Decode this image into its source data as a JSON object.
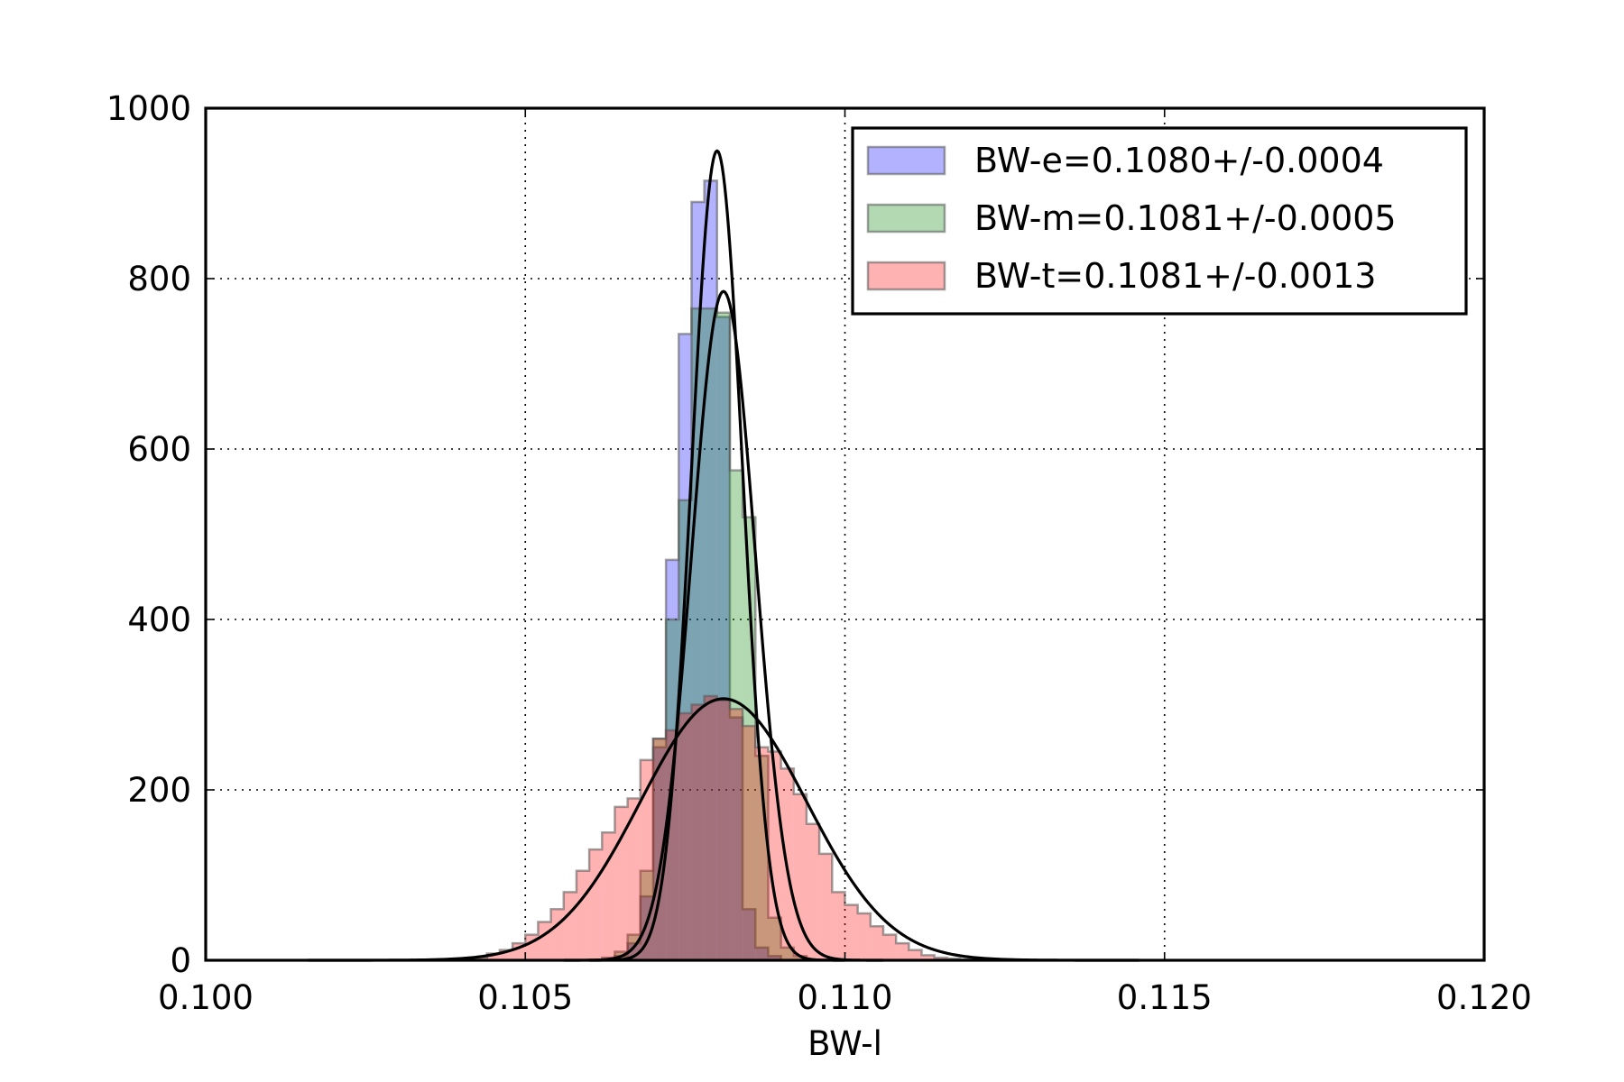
{
  "chart_data": {
    "type": "histogram",
    "xlabel": "BW-l",
    "ylabel": "",
    "title": "",
    "xlim": [
      0.1,
      0.12
    ],
    "ylim": [
      0,
      1000
    ],
    "xticks": [
      0.1,
      0.105,
      0.11,
      0.115,
      0.12
    ],
    "xtick_labels": [
      "0.100",
      "0.105",
      "0.110",
      "0.115",
      "0.120"
    ],
    "yticks": [
      0,
      200,
      400,
      600,
      800,
      1000
    ],
    "ytick_labels": [
      "0",
      "200",
      "400",
      "600",
      "800",
      "1000"
    ],
    "grid": true,
    "legend_position": "top-right",
    "series": [
      {
        "name": "BW-e=0.1080+/-0.0004",
        "color": "#0000ff",
        "alpha": 0.3,
        "edges": [
          0.1064,
          0.1066,
          0.1068,
          0.107,
          0.1072,
          0.1074,
          0.1076,
          0.1078,
          0.108,
          0.1082,
          0.1084,
          0.1086,
          0.1088,
          0.109,
          0.1092
        ],
        "counts": [
          5,
          20,
          75,
          250,
          470,
          735,
          890,
          915,
          755,
          285,
          60,
          15,
          5,
          0
        ],
        "fit": {
          "mean": 0.108,
          "sigma": 0.0004,
          "peak": 950
        }
      },
      {
        "name": "BW-m=0.1081+/-0.0005",
        "color": "#008000",
        "alpha": 0.3,
        "edges": [
          0.1062,
          0.1064,
          0.1066,
          0.1068,
          0.107,
          0.1072,
          0.1074,
          0.1076,
          0.1078,
          0.108,
          0.1082,
          0.1084,
          0.1086,
          0.1088,
          0.109,
          0.1092,
          0.1094
        ],
        "counts": [
          3,
          10,
          30,
          105,
          260,
          400,
          540,
          765,
          765,
          760,
          575,
          520,
          240,
          50,
          15,
          5
        ],
        "fit": {
          "mean": 0.1081,
          "sigma": 0.0005,
          "peak": 785
        }
      },
      {
        "name": "BW-t=0.1081+/-0.0013",
        "color": "#ff0000",
        "alpha": 0.3,
        "edges": [
          0.1042,
          0.1044,
          0.1046,
          0.1048,
          0.105,
          0.1052,
          0.1054,
          0.1056,
          0.1058,
          0.106,
          0.1062,
          0.1064,
          0.1066,
          0.1068,
          0.107,
          0.1072,
          0.1074,
          0.1076,
          0.1078,
          0.108,
          0.1082,
          0.1084,
          0.1086,
          0.1088,
          0.109,
          0.1092,
          0.1094,
          0.1096,
          0.1098,
          0.11,
          0.1102,
          0.1104,
          0.1106,
          0.1108,
          0.111,
          0.1112,
          0.1114,
          0.1116,
          0.1118,
          0.112
        ],
        "counts": [
          3,
          8,
          12,
          20,
          30,
          45,
          60,
          80,
          105,
          130,
          150,
          180,
          190,
          235,
          260,
          270,
          290,
          300,
          310,
          305,
          295,
          275,
          250,
          245,
          225,
          195,
          160,
          125,
          80,
          65,
          55,
          40,
          30,
          20,
          12,
          6,
          3,
          2,
          1
        ],
        "fit": {
          "mean": 0.1081,
          "sigma": 0.0013,
          "peak": 307
        }
      }
    ]
  }
}
